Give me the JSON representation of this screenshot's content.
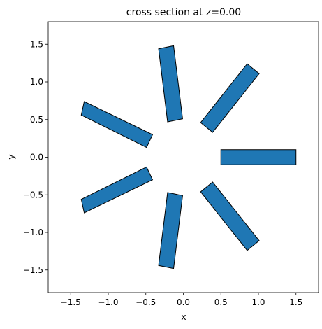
{
  "chart_data": {
    "type": "polygon-plot",
    "title": "cross section at z=0.00",
    "xlabel": "x",
    "ylabel": "y",
    "xlim": [
      -1.8,
      1.8
    ],
    "ylim": [
      -1.8,
      1.8
    ],
    "xticks": [
      -1.5,
      -1.0,
      -0.5,
      0.0,
      0.5,
      1.0,
      1.5
    ],
    "yticks": [
      -1.5,
      -1.0,
      -0.5,
      0.0,
      0.5,
      1.0,
      1.5
    ],
    "xtick_labels": [
      "−1.5",
      "−1.0",
      "−0.5",
      "0.0",
      "0.5",
      "1.0",
      "1.5"
    ],
    "ytick_labels": [
      "−1.5",
      "−1.0",
      "−0.5",
      "0.0",
      "0.5",
      "1.0",
      "1.5"
    ],
    "grid": false,
    "fill_color": "#1f77b4",
    "edge_color": "#000000",
    "shapes": [
      {
        "name": "bar-0deg",
        "vertices": [
          [
            0.5,
            -0.1
          ],
          [
            1.5,
            -0.1
          ],
          [
            1.5,
            0.1
          ],
          [
            0.5,
            0.1
          ]
        ]
      },
      {
        "name": "bar-51deg",
        "vertices": [
          [
            0.39,
            0.33
          ],
          [
            1.01,
            1.11
          ],
          [
            0.85,
            1.24
          ],
          [
            0.23,
            0.46
          ]
        ]
      },
      {
        "name": "bar-103deg",
        "vertices": [
          [
            -0.01,
            0.51
          ],
          [
            -0.13,
            1.48
          ],
          [
            -0.33,
            1.44
          ],
          [
            -0.21,
            0.47
          ]
        ]
      },
      {
        "name": "bar-154deg",
        "vertices": [
          [
            -0.41,
            0.3
          ],
          [
            -1.32,
            0.74
          ],
          [
            -1.36,
            0.56
          ],
          [
            -0.49,
            0.13
          ]
        ]
      },
      {
        "name": "bar-206deg",
        "vertices": [
          [
            -0.49,
            -0.13
          ],
          [
            -1.36,
            -0.56
          ],
          [
            -1.32,
            -0.74
          ],
          [
            -0.41,
            -0.3
          ]
        ]
      },
      {
        "name": "bar-257deg",
        "vertices": [
          [
            -0.21,
            -0.47
          ],
          [
            -0.33,
            -1.44
          ],
          [
            -0.13,
            -1.48
          ],
          [
            -0.01,
            -0.51
          ]
        ]
      },
      {
        "name": "bar-309deg",
        "vertices": [
          [
            0.23,
            -0.46
          ],
          [
            0.85,
            -1.24
          ],
          [
            1.01,
            -1.11
          ],
          [
            0.39,
            -0.33
          ]
        ]
      }
    ]
  }
}
